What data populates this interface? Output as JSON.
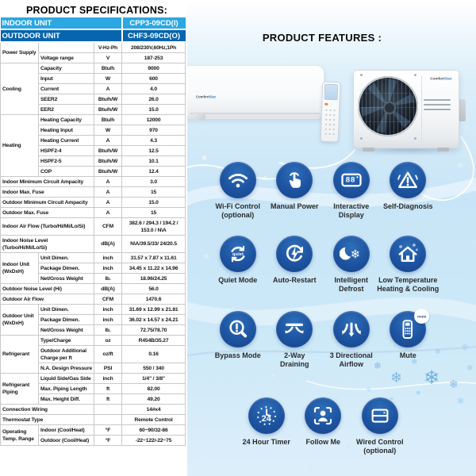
{
  "page": {
    "spec_title": "PRODUCT SPECIFICATIONS:",
    "features_title": "PRODUCT FEATURES :"
  },
  "brand": {
    "name": "ComfortStar",
    "part1": "Comfort",
    "part2": "Star"
  },
  "spec_table": {
    "headers": [
      {
        "label": "INDOOR UNIT",
        "value": "CPP3-09CD(I)"
      },
      {
        "label": "OUTDOOR UNIT",
        "value": "CHF3-09CD(O)"
      }
    ],
    "rows": [
      {
        "group": "Power Supply",
        "span": 2,
        "label": "",
        "unit": "V-Hz-Ph",
        "value": "208/230V,60Hz,1Ph"
      },
      {
        "label": "Voltage range",
        "unit": "V",
        "value": "187-253"
      },
      {
        "group": "Cooling",
        "span": 5,
        "label": "Capacity",
        "unit": "Btu/h",
        "value": "9000"
      },
      {
        "label": "Input",
        "unit": "W",
        "value": "600"
      },
      {
        "label": "Current",
        "unit": "A",
        "value": "4.0"
      },
      {
        "label": "SEER2",
        "unit": "Btu/h/W",
        "value": "26.0",
        "hl": "blue"
      },
      {
        "label": "EER2",
        "unit": "Btu/h/W",
        "value": "15.0",
        "hl": "blue"
      },
      {
        "group": "Heating",
        "span": 6,
        "label": "Heating Capacity",
        "unit": "Btu/h",
        "value": "12000"
      },
      {
        "label": "Heating Input",
        "unit": "W",
        "value": "970"
      },
      {
        "label": "Heating Current",
        "unit": "A",
        "value": "4.3"
      },
      {
        "label": "HSPF2-4",
        "unit": "Btu/h/W",
        "value": "12.5",
        "hl": "peach"
      },
      {
        "label": "HSPF2-5",
        "unit": "Btu/h/W",
        "value": "10.1",
        "hl": "peach"
      },
      {
        "label": "COP",
        "unit": "Btu/h/W",
        "value": "12.4"
      },
      {
        "full": true,
        "label": "Indoor Minimum Circuit Ampacity",
        "unit": "A",
        "value": "3.0"
      },
      {
        "full": true,
        "label": "Indoor Max. Fuse",
        "unit": "A",
        "value": "15"
      },
      {
        "full": true,
        "label": "Outdoor Minimum Circuit Ampacity",
        "unit": "A",
        "value": "15.0"
      },
      {
        "full": true,
        "label": "Outdoor Max. Fuse",
        "unit": "A",
        "value": "15"
      },
      {
        "full": true,
        "label": "Indoor Air Flow (Turbo/Hi/Mi/Lo/Si)",
        "unit": "CFM",
        "value": "382.6 / 294.3 / 194.2 / 153.0 / N\\A"
      },
      {
        "full": true,
        "label": "Indoor Noise Level (Turbo/Hi/Mi/Lo/Si)",
        "unit": "dB(A)",
        "value": "N\\A/39.5/33/ 24/20.5"
      },
      {
        "group": "Indoor Unit (WxDxH)",
        "span": 3,
        "label": "Unit Dimen.",
        "unit": "inch",
        "value": "31.57 x 7.87 x 11.61"
      },
      {
        "label": "Package Dimen.",
        "unit": "inch",
        "value": "34.45 x 11.22 x 14.96"
      },
      {
        "label": "Net/Gross Weight",
        "unit": "lb.",
        "value": "18.96/24.25"
      },
      {
        "full": true,
        "label": "Outdoor Noise Level (Hi)",
        "unit": "dB(A)",
        "value": "56.0"
      },
      {
        "full": true,
        "label": "Outdoor Air Flow",
        "unit": "CFM",
        "value": "1470.6"
      },
      {
        "group": "Outdoor Unit (WxDxH)",
        "span": 3,
        "label": "Unit Dimen.",
        "unit": "inch",
        "value": "31.69 x 12.99 x 21.81"
      },
      {
        "label": "Package Dimen.",
        "unit": "inch",
        "value": "36.02 x 14.57 x 24.21"
      },
      {
        "label": "Net/Gross Weight",
        "unit": "lb.",
        "value": "72.75/78.70"
      },
      {
        "group": "Refrigerant",
        "span": 3,
        "label": "Type/Charge",
        "unit": "oz",
        "value": "R454B/35.27"
      },
      {
        "label": "Outdoor Additional Charge per ft",
        "unit": "oz/ft",
        "value": "0.16"
      },
      {
        "label": "N.A. Design Pressure",
        "unit": "PSI",
        "value": "550 / 340"
      },
      {
        "group": "Refrigerant Piping",
        "span": 3,
        "label": "Liquid Side/Gas Side",
        "unit": "inch",
        "value": "1/4\" / 3/8\""
      },
      {
        "label": "Max. Piping Length",
        "unit": "ft",
        "value": "82.00"
      },
      {
        "label": "Max. Height Diff.",
        "unit": "ft",
        "value": "49.20"
      },
      {
        "full": true,
        "label": "Connection Wiring",
        "unit": "",
        "value": "14#x4"
      },
      {
        "full": true,
        "label": "Thermostat Type",
        "unit": "",
        "value": "Remote Control"
      },
      {
        "group": "Operating Temp. Range",
        "span": 2,
        "label": "Indoor (Cool/Heat)",
        "unit": "°F",
        "value": "60~90/32-86"
      },
      {
        "label": "Outdoor (Cool/Heat)",
        "unit": "°F",
        "value": "-22~122/-22~75"
      }
    ]
  },
  "features": [
    {
      "label": "Wi-Fi Control\n(optional)",
      "icon": "wifi-icon"
    },
    {
      "label": "Manual Power",
      "icon": "hand-tap-icon"
    },
    {
      "label": "Interactive\nDisplay",
      "icon": "display-icon",
      "badge": "88"
    },
    {
      "label": "Self-Diagnosis",
      "icon": "warning-triangle-icon"
    },
    {
      "label": "Quiet Mode",
      "icon": "quiet-cycle-icon",
      "badge": "quiet"
    },
    {
      "label": "Auto-Restart",
      "icon": "restart-bolt-icon"
    },
    {
      "label": "Intelligent\nDefrost",
      "icon": "moon-snowflake-icon"
    },
    {
      "label": "Low Temperature\nHeating & Cooling",
      "icon": "house-snow-icon"
    },
    {
      "label": "Bypass Mode",
      "icon": "magnifier-alert-icon"
    },
    {
      "label": "2-Way\nDraining",
      "icon": "two-way-arrows-icon"
    },
    {
      "label": "3 Directional\nAirflow",
      "icon": "three-arrows-icon"
    },
    {
      "label": "Mute",
      "icon": "remote-mute-icon",
      "badge": "mute"
    },
    {
      "label": "24 Hour Timer",
      "icon": "clock-24-icon",
      "badge": "24"
    },
    {
      "label": "Follow Me",
      "icon": "follow-me-icon"
    },
    {
      "label": "Wired Control\n(optional)",
      "icon": "wired-control-icon"
    }
  ],
  "colors": {
    "header_light_blue": "#2BA7E1",
    "header_dark_blue": "#0765AE",
    "row_highlight_blue": "#CDE9F8",
    "row_highlight_peach": "#FBE3D6",
    "feature_circle_blue": "#1D53A0",
    "panel_blue": "#C9E6F8"
  }
}
